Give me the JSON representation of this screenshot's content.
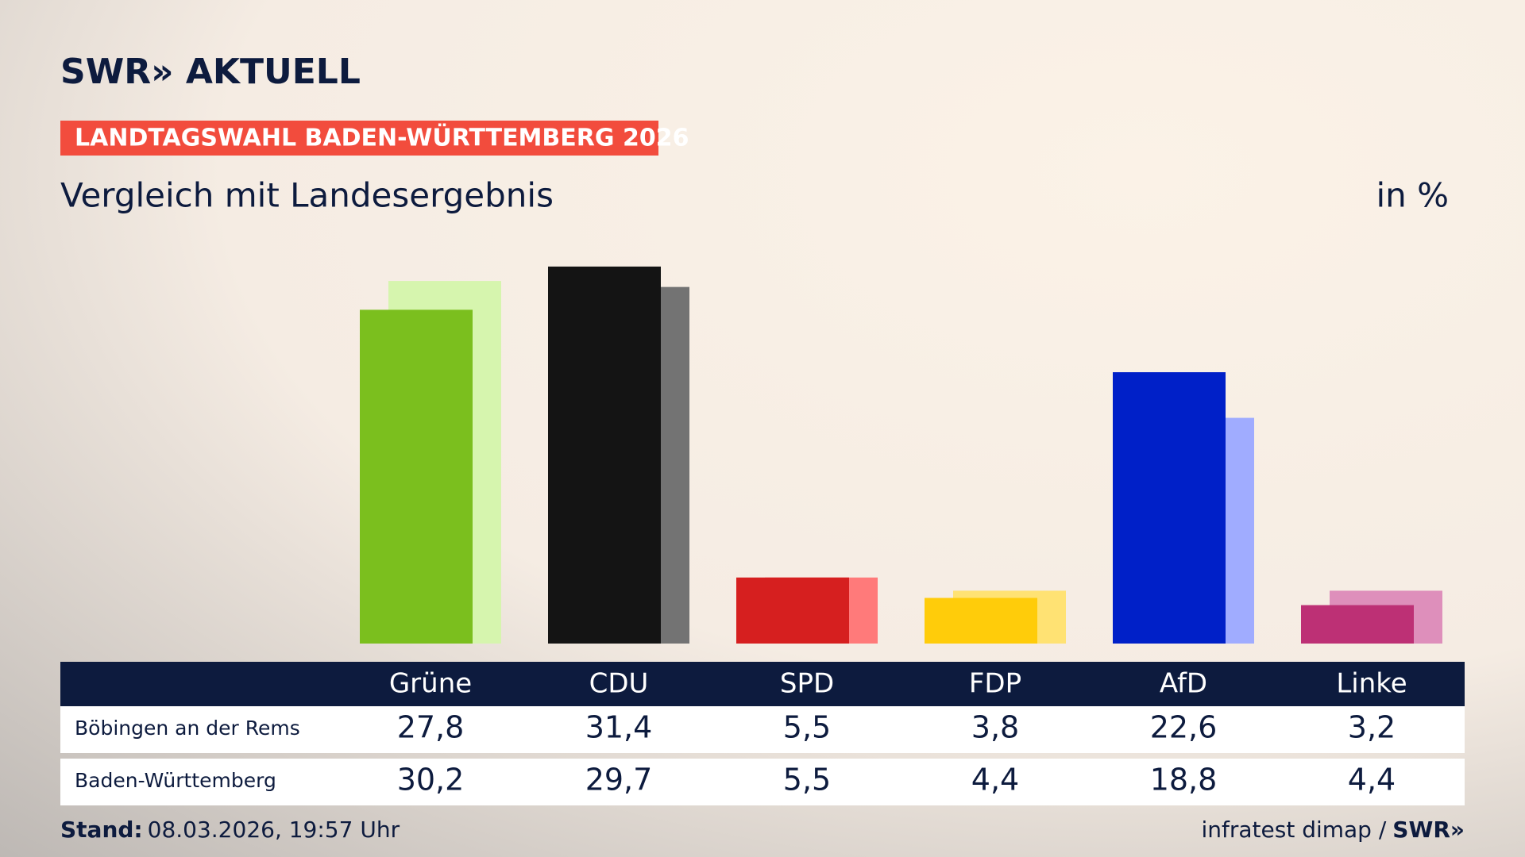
{
  "brand": "SWR» AKTUELL",
  "badge": "LANDTAGSWAHL BADEN-WÜRTTEMBERG 2026",
  "chart_data": {
    "type": "bar",
    "title": "Vergleich mit Landesergebnis",
    "unit_label": "in %",
    "categories": [
      "Grüne",
      "CDU",
      "SPD",
      "FDP",
      "AfD",
      "Linke"
    ],
    "series": [
      {
        "name": "Böbingen an der Rems",
        "values": [
          27.8,
          31.4,
          5.5,
          3.8,
          22.6,
          3.2
        ],
        "value_labels": [
          "27,8",
          "31,4",
          "5,5",
          "3,8",
          "22,6",
          "3,2"
        ],
        "colors": [
          "#7bbf1e",
          "#141414",
          "#d61f1f",
          "#ffcc0a",
          "#0020c8",
          "#bd3075"
        ]
      },
      {
        "name": "Baden-Württemberg",
        "values": [
          30.2,
          29.7,
          5.5,
          4.4,
          18.8,
          4.4
        ],
        "value_labels": [
          "30,2",
          "29,7",
          "5,5",
          "4,4",
          "18,8",
          "4,4"
        ],
        "colors": [
          "#d6f5ae",
          "#737373",
          "#ff7a7a",
          "#ffe273",
          "#a0acff",
          "#de8fbb"
        ]
      }
    ]
  },
  "footer": {
    "stand_label": "Stand:",
    "stand": "08.03.2026, 19:57 Uhr",
    "source": "infratest dimap /",
    "source_brand": "SWR»"
  }
}
